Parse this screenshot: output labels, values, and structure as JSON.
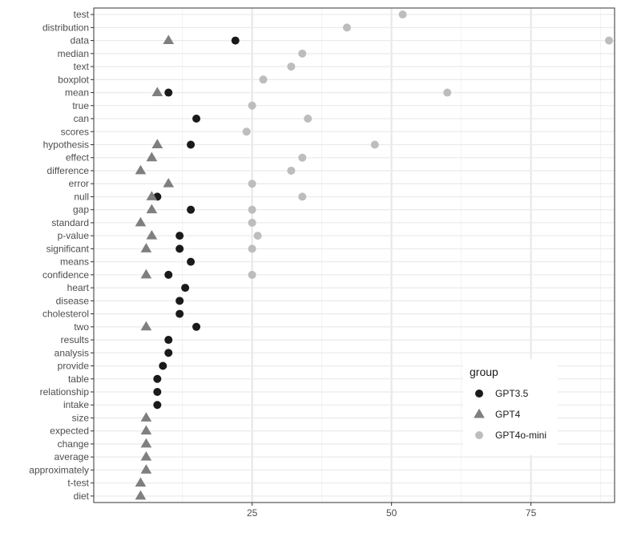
{
  "chart_data": {
    "type": "scatter",
    "title": "",
    "xlabel": "",
    "ylabel": "",
    "xlim": [
      -3.4,
      90
    ],
    "x_ticks": [
      25,
      50,
      75
    ],
    "x_tick_labels": [
      "25",
      "50",
      "75"
    ],
    "grid": true,
    "legend": {
      "title": "group",
      "position": "bottom-right-inside",
      "entries": [
        "GPT3.5",
        "GPT4",
        "GPT4o-mini"
      ]
    },
    "categories": [
      "test",
      "distribution",
      "data",
      "median",
      "text",
      "boxplot",
      "mean",
      "true",
      "can",
      "scores",
      "hypothesis",
      "effect",
      "difference",
      "error",
      "null",
      "gap",
      "standard",
      "p-value",
      "significant",
      "means",
      "confidence",
      "heart",
      "disease",
      "cholesterol",
      "two",
      "results",
      "analysis",
      "provide",
      "table",
      "relationship",
      "intake",
      "size",
      "expected",
      "change",
      "average",
      "approximately",
      "t-test",
      "diet"
    ],
    "series": [
      {
        "name": "GPT3.5",
        "shape": "circle",
        "color": "#1a1a1a",
        "points": [
          [
            "data",
            22
          ],
          [
            "mean",
            10
          ],
          [
            "can",
            15
          ],
          [
            "hypothesis",
            14
          ],
          [
            "null",
            8
          ],
          [
            "gap",
            14
          ],
          [
            "p-value",
            12
          ],
          [
            "significant",
            12
          ],
          [
            "means",
            14
          ],
          [
            "confidence",
            10
          ],
          [
            "heart",
            13
          ],
          [
            "disease",
            12
          ],
          [
            "cholesterol",
            12
          ],
          [
            "two",
            15
          ],
          [
            "results",
            10
          ],
          [
            "analysis",
            10
          ],
          [
            "provide",
            9
          ],
          [
            "table",
            8
          ],
          [
            "relationship",
            8
          ],
          [
            "intake",
            8
          ]
        ]
      },
      {
        "name": "GPT4",
        "shape": "triangle",
        "color": "#7f7f7f",
        "points": [
          [
            "data",
            10
          ],
          [
            "mean",
            8
          ],
          [
            "hypothesis",
            8
          ],
          [
            "effect",
            7
          ],
          [
            "difference",
            5
          ],
          [
            "error",
            10
          ],
          [
            "null",
            7
          ],
          [
            "gap",
            7
          ],
          [
            "standard",
            5
          ],
          [
            "p-value",
            7
          ],
          [
            "significant",
            6
          ],
          [
            "confidence",
            6
          ],
          [
            "two",
            6
          ],
          [
            "size",
            6
          ],
          [
            "expected",
            6
          ],
          [
            "change",
            6
          ],
          [
            "average",
            6
          ],
          [
            "approximately",
            6
          ],
          [
            "t-test",
            5
          ],
          [
            "diet",
            5
          ]
        ]
      },
      {
        "name": "GPT4o-mini",
        "shape": "circle",
        "color": "#bdbdbd",
        "points": [
          [
            "test",
            52
          ],
          [
            "distribution",
            42
          ],
          [
            "data",
            89
          ],
          [
            "median",
            34
          ],
          [
            "text",
            32
          ],
          [
            "boxplot",
            27
          ],
          [
            "mean",
            60
          ],
          [
            "true",
            25
          ],
          [
            "can",
            35
          ],
          [
            "scores",
            24
          ],
          [
            "hypothesis",
            47
          ],
          [
            "effect",
            34
          ],
          [
            "difference",
            32
          ],
          [
            "error",
            25
          ],
          [
            "null",
            34
          ],
          [
            "gap",
            25
          ],
          [
            "standard",
            25
          ],
          [
            "p-value",
            26
          ],
          [
            "significant",
            25
          ],
          [
            "confidence",
            25
          ]
        ]
      }
    ]
  }
}
